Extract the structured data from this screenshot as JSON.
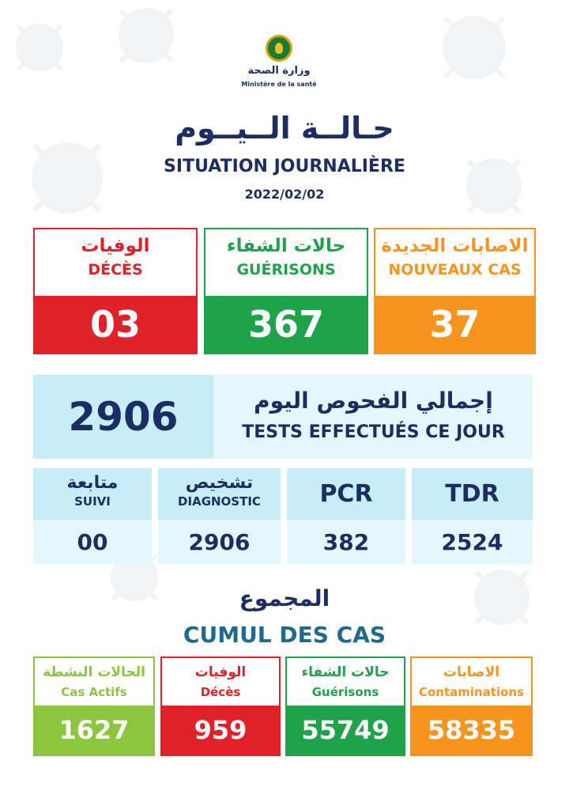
{
  "header": {
    "ministry_ar": "وزارة الصحة",
    "ministry_fr": "Ministère de la santé",
    "title_ar": "حـالــة الــيــوم",
    "title_fr": "SITUATION JOURNALIÈRE",
    "date": "2022/02/02"
  },
  "daily": {
    "deaths": {
      "ar": "الوفيات",
      "fr": "DÉCÈS",
      "value": "03"
    },
    "recoveries": {
      "ar": "حالات الشفاء",
      "fr": "GUÉRISONS",
      "value": "367"
    },
    "new_cases": {
      "ar": "الاصابات الجديدة",
      "fr": "NOUVEAUX CAS",
      "value": "37"
    }
  },
  "tests": {
    "total": "2906",
    "label_ar": "إجمالي الفحوص اليوم",
    "label_fr": "TESTS EFFECTUÉS CE JOUR",
    "suivi": {
      "ar": "متابعة",
      "fr": "SUIVI",
      "value": "00"
    },
    "diagnostic": {
      "ar": "تشخيص",
      "fr": "DIAGNOSTIC",
      "value": "2906"
    },
    "pcr": {
      "label": "PCR",
      "value": "382"
    },
    "tdr": {
      "label": "TDR",
      "value": "2524"
    }
  },
  "cumul": {
    "title_ar": "المجموع",
    "title_fr": "CUMUL DES CAS",
    "active": {
      "ar": "الحالات النشطة",
      "fr": "Cas Actifs",
      "value": "1627"
    },
    "deaths": {
      "ar": "الوفيات",
      "fr": "Décès",
      "value": "959"
    },
    "recoveries": {
      "ar": "حالات الشفاء",
      "fr": "Guérisons",
      "value": "55749"
    },
    "contaminations": {
      "ar": "الاصابات",
      "fr": "Contaminations",
      "value": "58335"
    }
  },
  "colors": {
    "navy": "#1c2d63",
    "red": "#e02127",
    "green": "#1ea24a",
    "orange": "#f7941d",
    "lime": "#8cc63f",
    "light_blue": "#c7eef8"
  }
}
